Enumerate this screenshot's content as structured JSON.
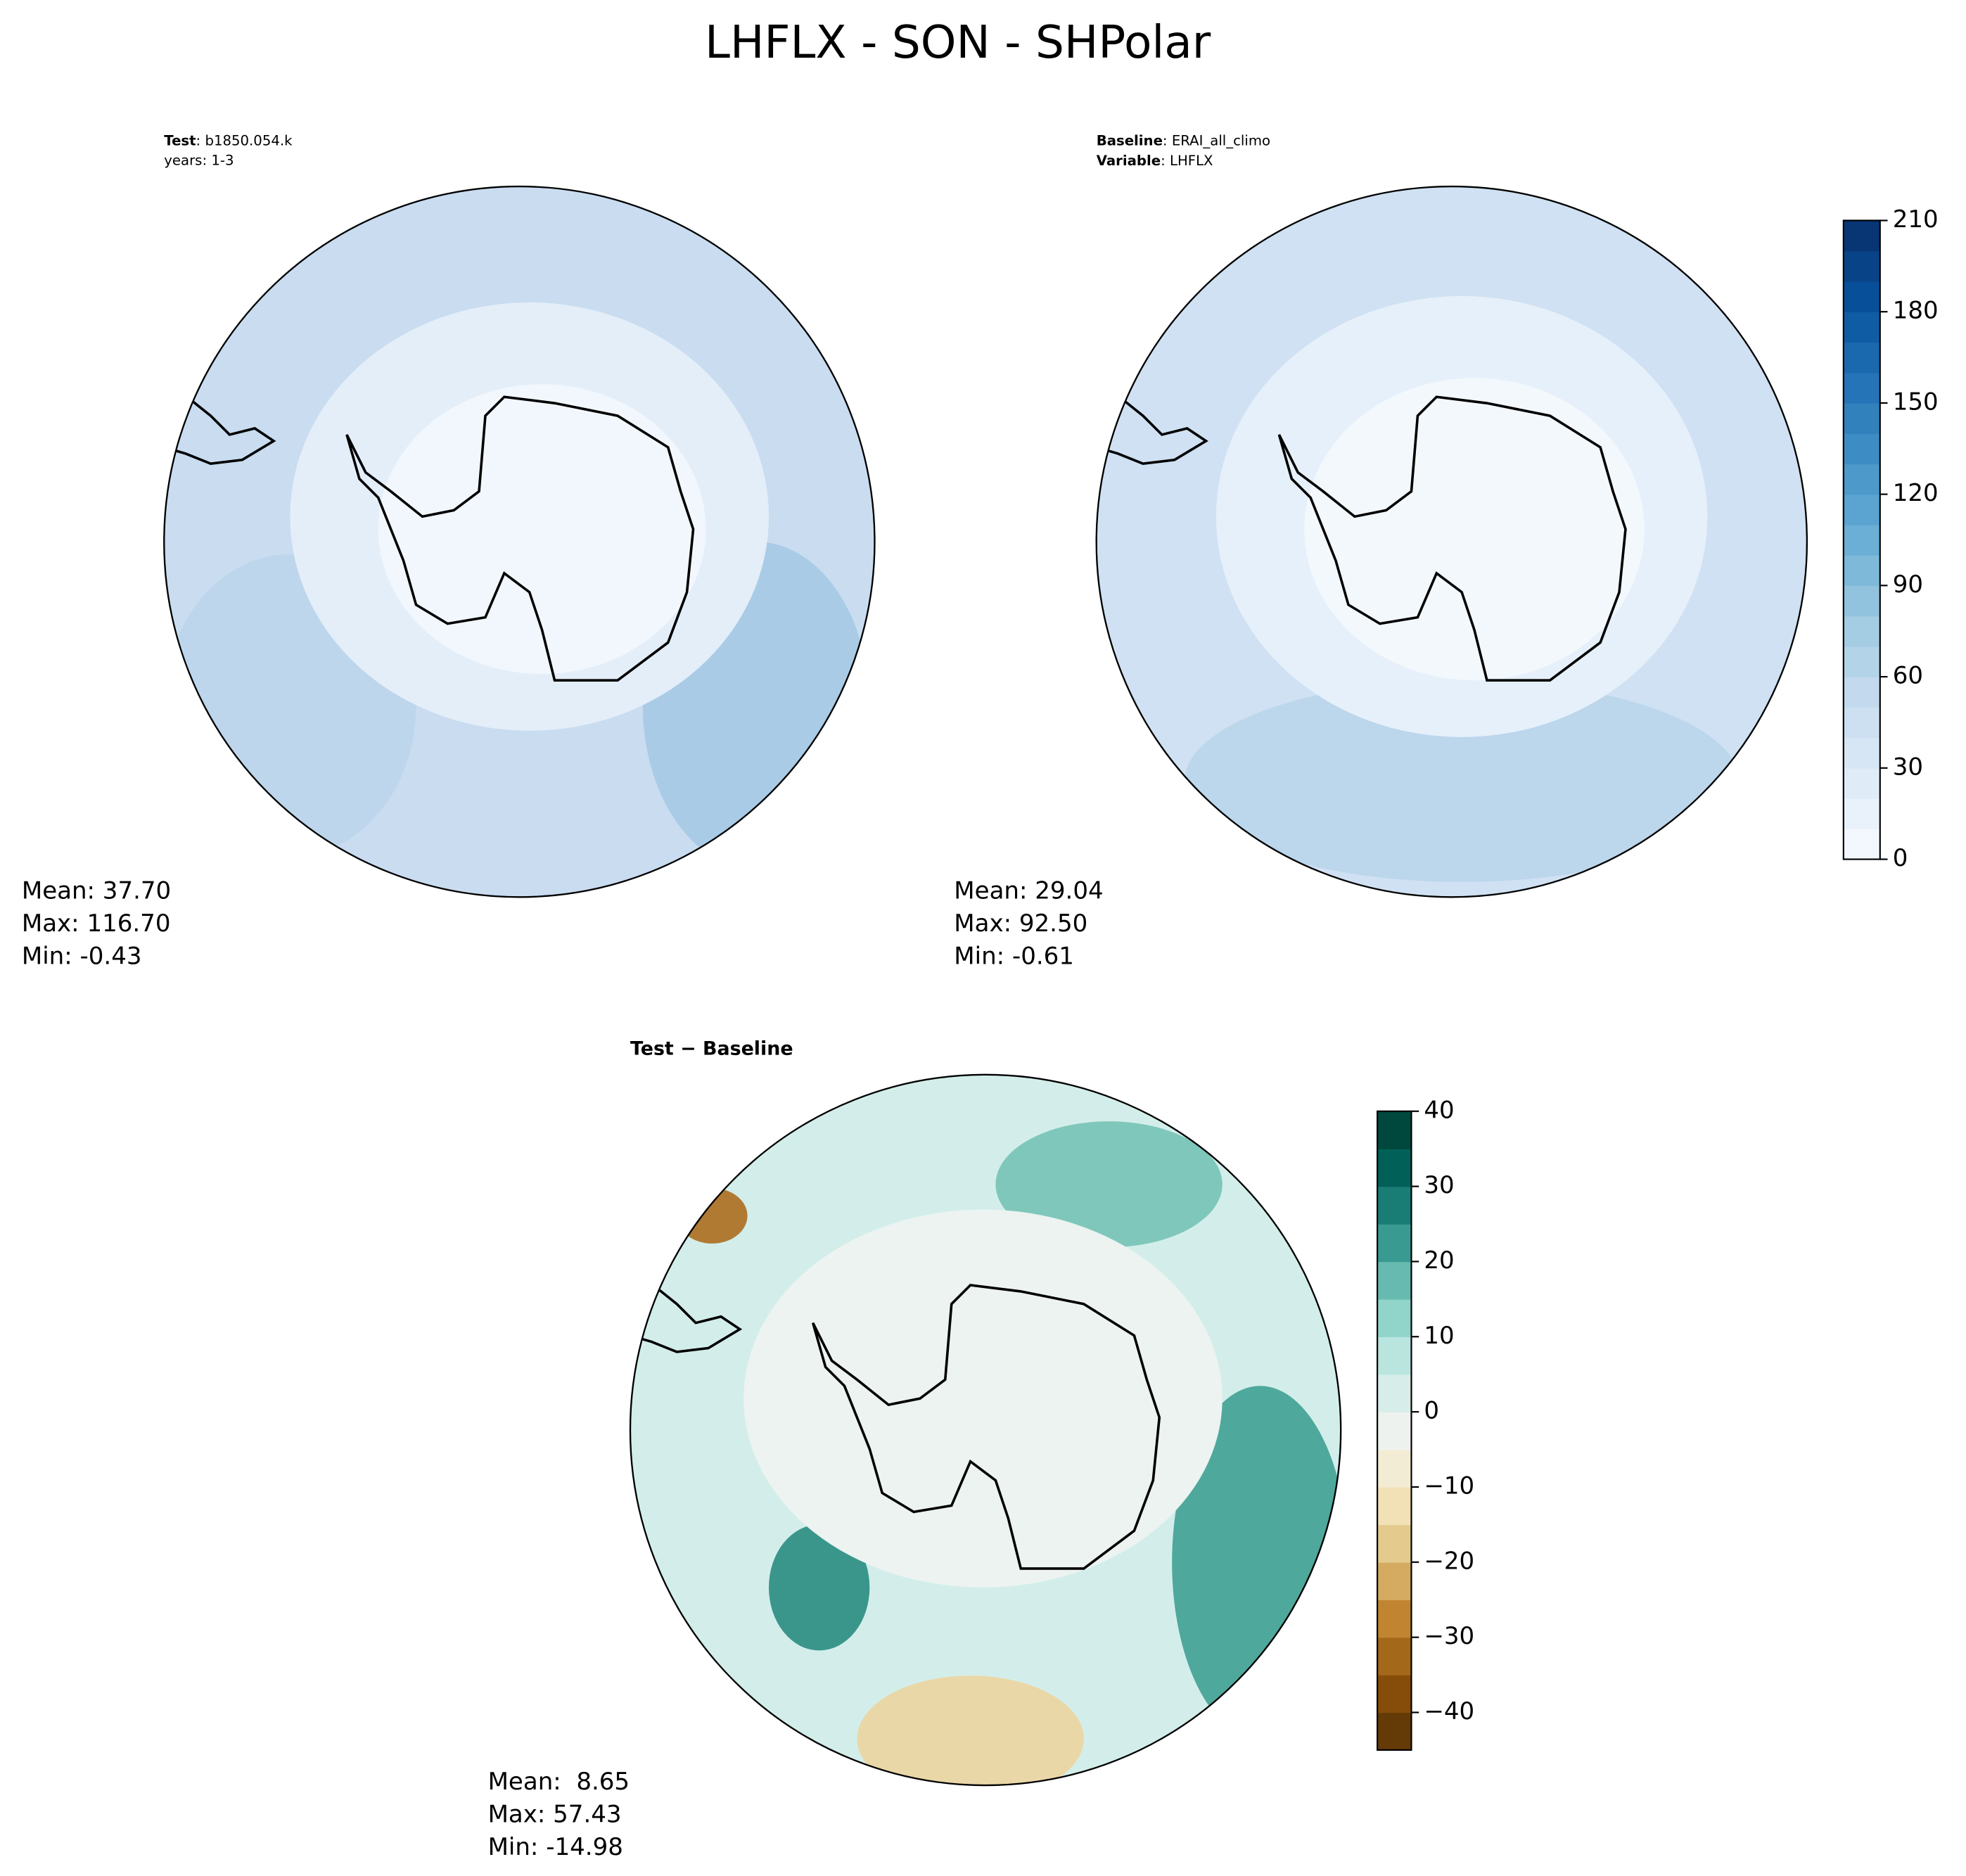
{
  "title": "LHFLX - SON - SHPolar",
  "panels": [
    {
      "label_key": "Test",
      "label_value": ": b1850.054.k",
      "subtitle": "years: 1-3",
      "stats": [
        "Mean: 37.70",
        "Max: 116.70",
        "Min: -0.43"
      ]
    },
    {
      "label_key": "Baseline",
      "label_value": ": ERAI_all_climo",
      "label2_key": "Variable",
      "label2_value": ": LHFLX",
      "stats": [
        "Mean: 29.04",
        "Max: 92.50",
        "Min: -0.61"
      ]
    },
    {
      "label": "Test − Baseline",
      "stats": [
        "Mean:  8.65",
        "Max: 57.43",
        "Min: -14.98"
      ]
    }
  ],
  "colorbars": [
    {
      "lim": [
        0,
        210
      ],
      "step": 10,
      "ticks": [
        0,
        30,
        60,
        90,
        120,
        150,
        180,
        210
      ],
      "colors": [
        "#f7fbff",
        "#deebf7",
        "#c6dbef",
        "#9ecae1",
        "#6baed6",
        "#4292c6",
        "#2171b5",
        "#08519c",
        "#08306b"
      ]
    },
    {
      "lim": [
        -45,
        40
      ],
      "step": 5,
      "ticks": [
        {
          "value": -40,
          "label": "−40"
        },
        {
          "value": -30,
          "label": "−30"
        },
        {
          "value": -20,
          "label": "−20"
        },
        {
          "value": -10,
          "label": "−10"
        },
        0,
        10,
        20,
        30,
        40
      ],
      "colors": [
        "#543005",
        "#8c510a",
        "#bf812d",
        "#dfc27d",
        "#f6e8c3",
        "#eef2ef",
        "#c7eae5",
        "#80cdc1",
        "#35978f",
        "#01665e",
        "#003c30"
      ]
    }
  ]
}
